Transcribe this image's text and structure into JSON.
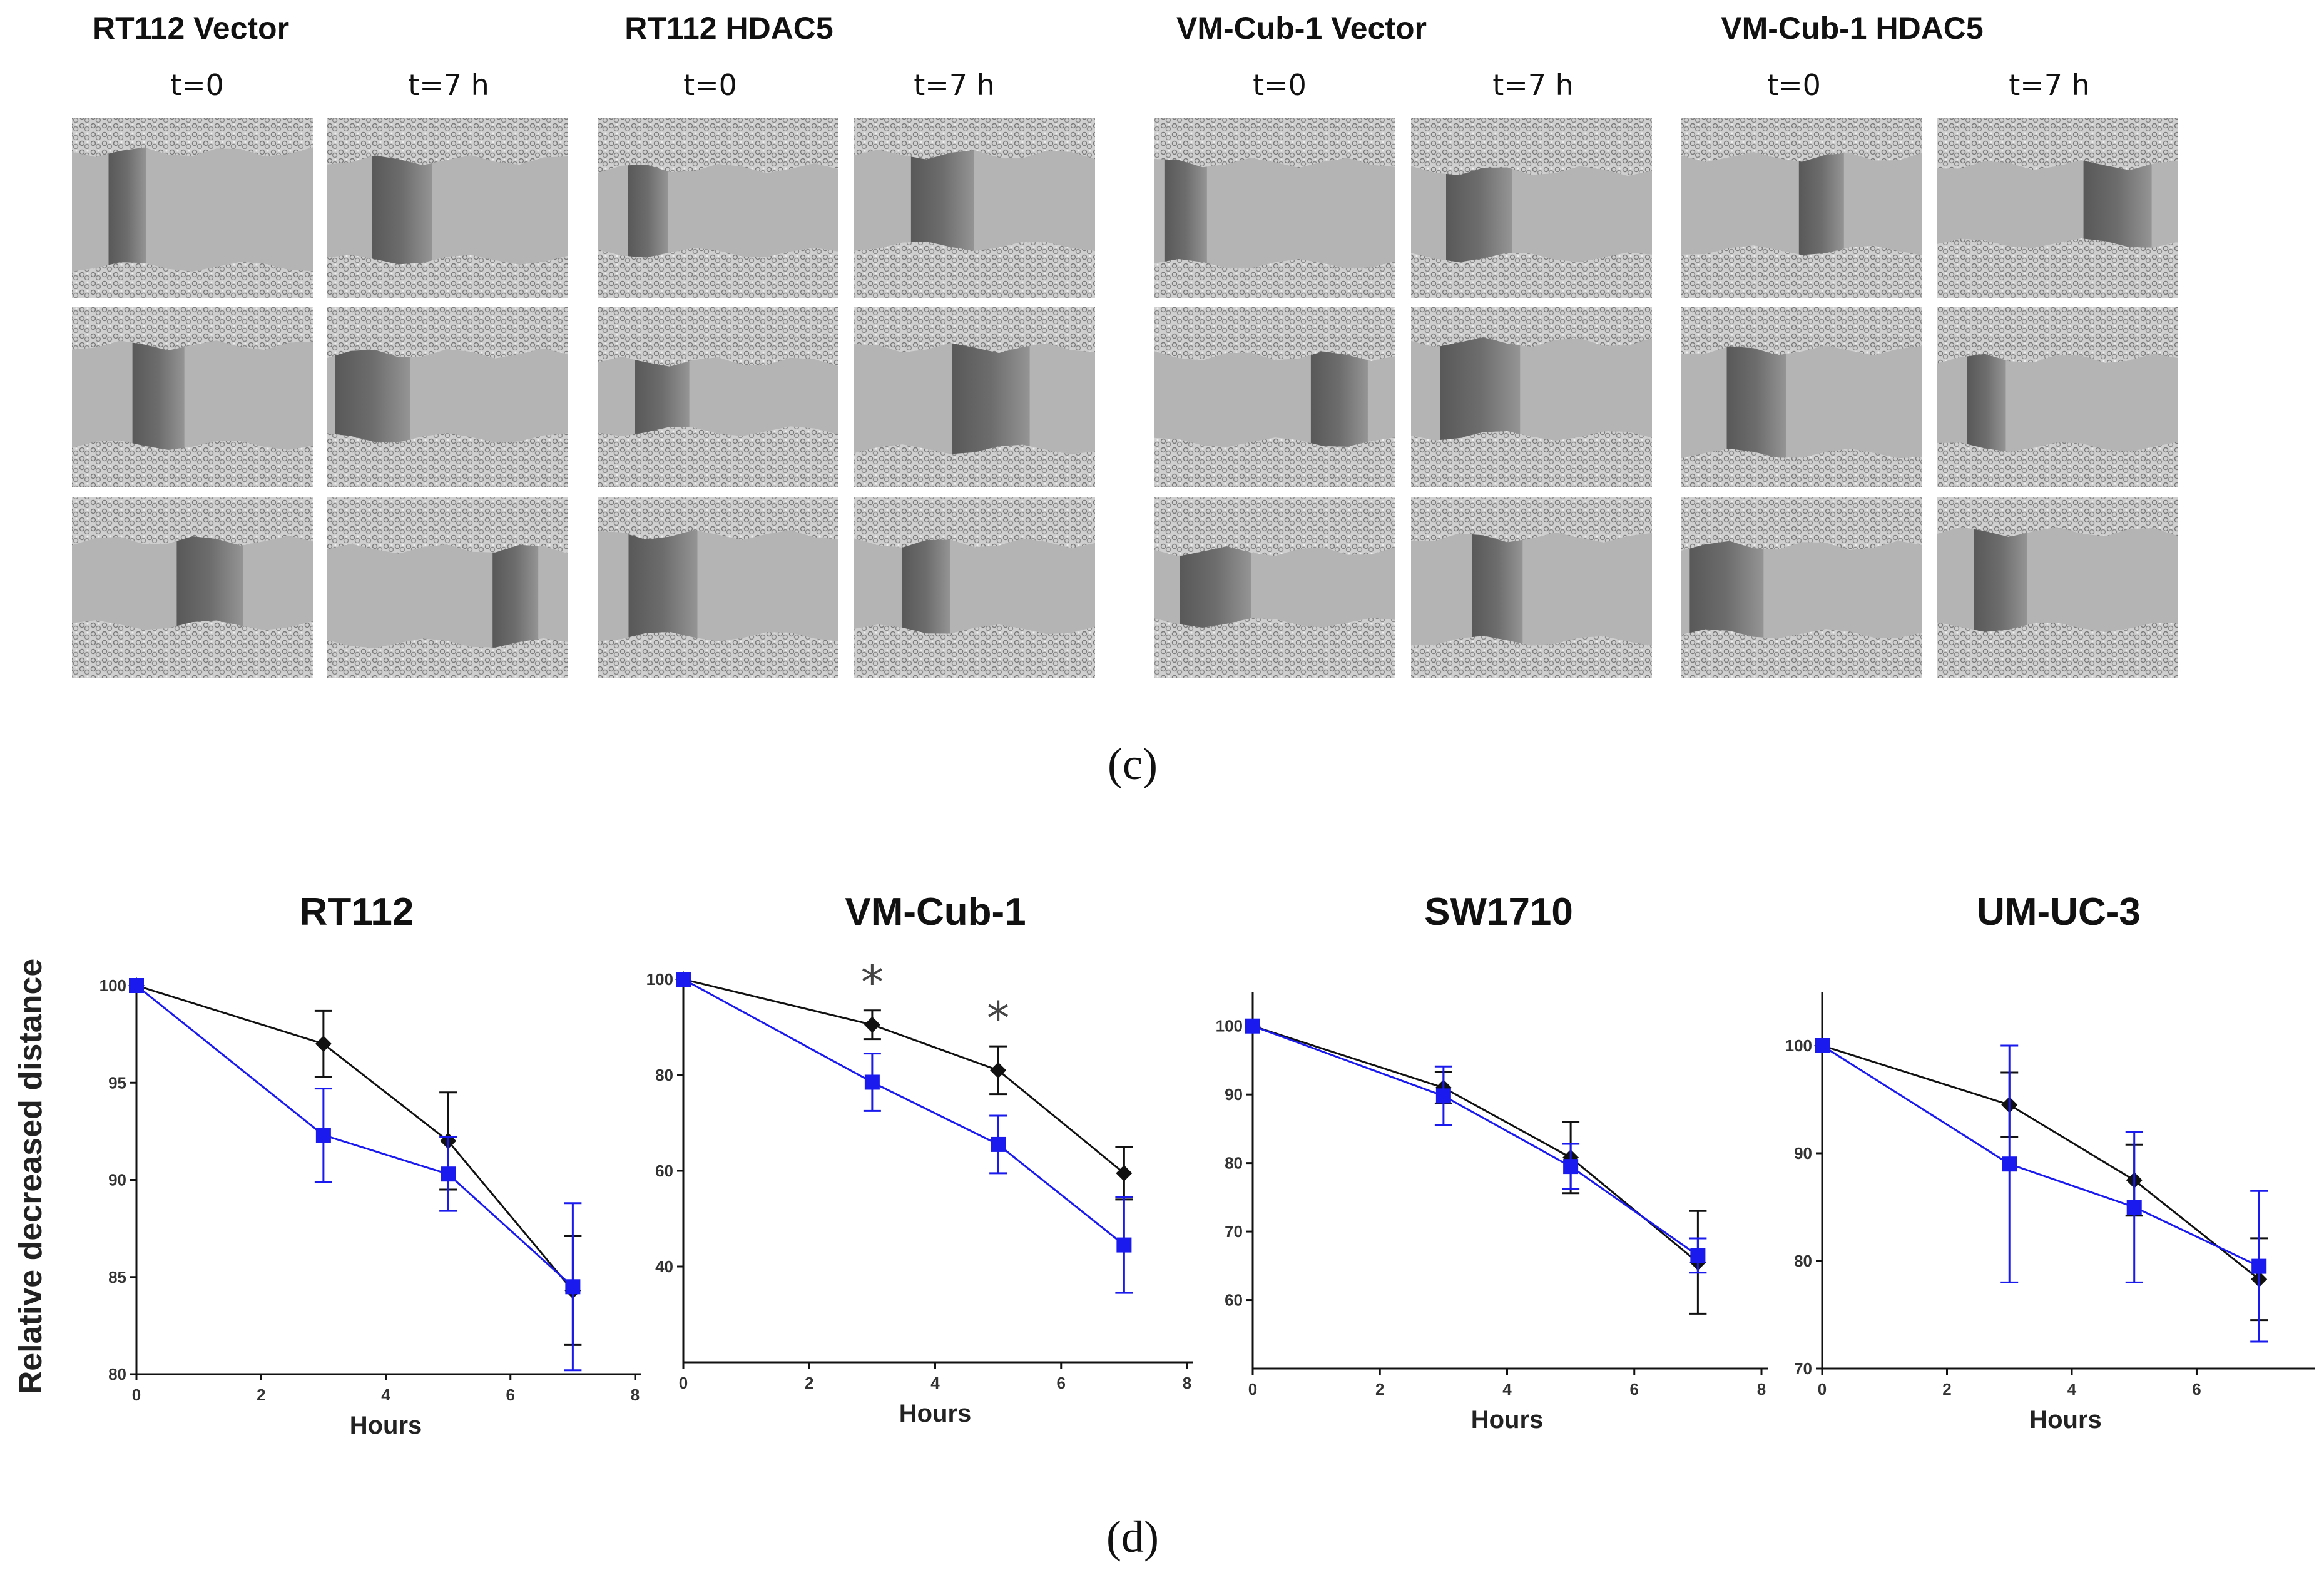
{
  "panel_c": {
    "label": "(c)",
    "groups": [
      {
        "title": "RT112 Vector",
        "col_labels": [
          "t=0",
          "t=7 h"
        ]
      },
      {
        "title": "RT112 HDAC5",
        "col_labels": [
          "t=0",
          "t=7 h"
        ]
      },
      {
        "title": "VM-Cub-1 Vector",
        "col_labels": [
          "t=0",
          "t=7 h"
        ]
      },
      {
        "title": "VM-Cub-1 HDAC5",
        "col_labels": [
          "t=0",
          "t=7 h"
        ]
      }
    ]
  },
  "panel_d": {
    "label": "(d)",
    "ylabel": "Relative decreased distance"
  },
  "colors": {
    "vector": "#111111",
    "hdac5": "#1a1aee",
    "axis": "#111111",
    "image_bg": "#b4b4b4"
  },
  "chart_data": [
    {
      "type": "line",
      "title": "RT112",
      "xlabel": "Hours",
      "ylabel": "Relative decreased distance",
      "xlim": [
        0,
        8
      ],
      "ylim": [
        80,
        100
      ],
      "xticks": [
        0,
        2,
        4,
        6,
        8
      ],
      "yticks": [
        80,
        85,
        90,
        95,
        100
      ],
      "annotations": [],
      "series": [
        {
          "name": "Vector",
          "marker": "diamond",
          "x": [
            0,
            3,
            5,
            7
          ],
          "y": [
            100,
            97.0,
            92.0,
            84.3
          ],
          "err": [
            0,
            1.7,
            2.5,
            2.8
          ]
        },
        {
          "name": "HDAC5",
          "marker": "square",
          "x": [
            0,
            3,
            5,
            7
          ],
          "y": [
            100,
            92.3,
            90.3,
            84.5
          ],
          "err": [
            0,
            2.4,
            1.9,
            4.3
          ]
        }
      ]
    },
    {
      "type": "line",
      "title": "VM-Cub-1",
      "xlabel": "Hours",
      "ylabel": "Relative decreased distance",
      "xlim": [
        0,
        8
      ],
      "ylim": [
        20,
        100
      ],
      "xticks": [
        0,
        2,
        4,
        6,
        8
      ],
      "yticks": [
        40,
        60,
        80,
        100
      ],
      "annotations": [
        {
          "x": 3,
          "text": "*"
        },
        {
          "x": 5,
          "text": "*"
        }
      ],
      "series": [
        {
          "name": "Vector",
          "marker": "diamond",
          "x": [
            0,
            3,
            5,
            7
          ],
          "y": [
            100,
            90.5,
            81.0,
            59.5
          ],
          "err": [
            0,
            3.0,
            5.0,
            5.5
          ]
        },
        {
          "name": "HDAC5",
          "marker": "square",
          "x": [
            0,
            3,
            5,
            7
          ],
          "y": [
            100,
            78.5,
            65.5,
            44.5
          ],
          "err": [
            0,
            6.0,
            6.0,
            10.0
          ]
        }
      ]
    },
    {
      "type": "line",
      "title": "SW1710",
      "xlabel": "Hours",
      "ylabel": "Relative decreased distance",
      "xlim": [
        0,
        8
      ],
      "ylim": [
        50,
        105
      ],
      "xticks": [
        0,
        2,
        4,
        6,
        8
      ],
      "yticks": [
        60,
        70,
        80,
        90,
        100
      ],
      "annotations": [],
      "series": [
        {
          "name": "Vector",
          "marker": "diamond",
          "x": [
            0,
            3,
            5,
            7
          ],
          "y": [
            100,
            91.0,
            80.8,
            65.5
          ],
          "err": [
            0,
            2.3,
            5.2,
            7.5
          ]
        },
        {
          "name": "HDAC5",
          "marker": "square",
          "x": [
            0,
            3,
            5,
            7
          ],
          "y": [
            100,
            89.8,
            79.5,
            66.5
          ],
          "err": [
            0,
            4.3,
            3.3,
            2.5
          ]
        }
      ]
    },
    {
      "type": "line",
      "title": "UM-UC-3",
      "xlabel": "Hours",
      "ylabel": "Relative decreased distance",
      "xlim": [
        0,
        7.8
      ],
      "ylim": [
        70,
        105
      ],
      "xticks": [
        0,
        2,
        4,
        6
      ],
      "yticks": [
        70,
        80,
        90,
        100
      ],
      "annotations": [],
      "series": [
        {
          "name": "Vector",
          "marker": "diamond",
          "x": [
            0,
            3,
            5,
            7
          ],
          "y": [
            100,
            94.5,
            87.5,
            78.3
          ],
          "err": [
            0,
            3.0,
            3.3,
            3.8
          ]
        },
        {
          "name": "HDAC5",
          "marker": "square",
          "x": [
            0,
            3,
            5,
            7
          ],
          "y": [
            100,
            89.0,
            85.0,
            79.5
          ],
          "err": [
            0,
            11.0,
            7.0,
            7.0
          ]
        }
      ]
    }
  ]
}
